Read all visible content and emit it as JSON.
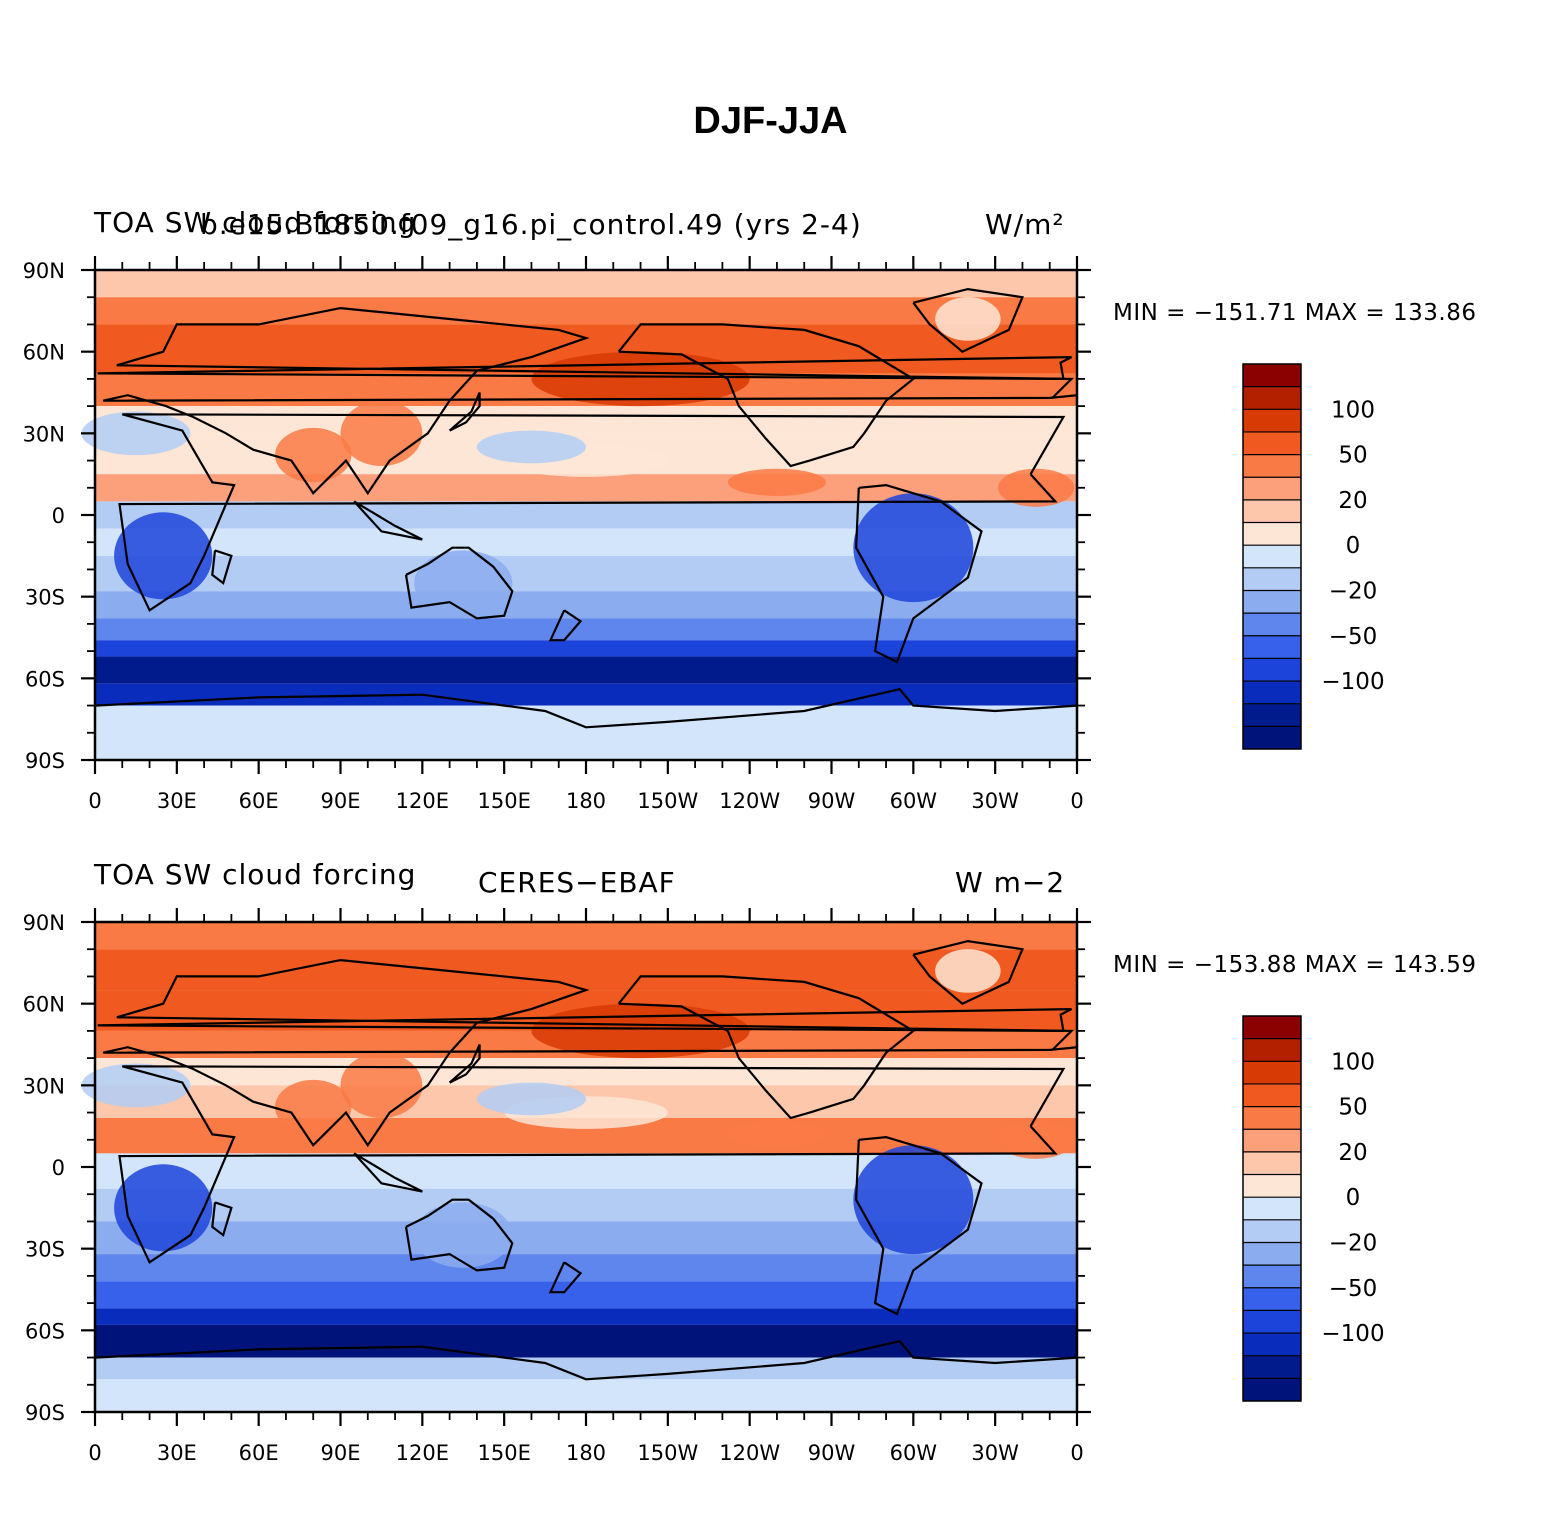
{
  "figure": {
    "title": "DJF-JJA"
  },
  "panels": [
    {
      "left_title": "TOA SW cloud forcing",
      "center_title": "b.e15.B1850.f09_g16.pi_control.49 (yrs 2-4)",
      "right_title": "W/m²",
      "min_max": "MIN = −151.71  MAX = 133.86"
    },
    {
      "left_title": "TOA SW cloud forcing",
      "center_title": "CERES−EBAF",
      "right_title": "W m−2",
      "min_max": "MIN = −153.88  MAX = 143.59"
    }
  ],
  "axes": {
    "lon_ticks": [
      "0",
      "30E",
      "60E",
      "90E",
      "120E",
      "150E",
      "180",
      "150W",
      "120W",
      "90W",
      "60W",
      "30W",
      "0"
    ],
    "lat_ticks": [
      "90N",
      "60N",
      "30N",
      "0",
      "30S",
      "60S",
      "90S"
    ]
  },
  "colorbar": {
    "labels": [
      "100",
      "50",
      "20",
      "0",
      "−20",
      "−50",
      "−100"
    ],
    "colors": [
      "#8b0000",
      "#b22000",
      "#d83a05",
      "#f05a20",
      "#fa7a45",
      "#fca07c",
      "#fdc7ac",
      "#fee6d6",
      "#d2e5fa",
      "#b2ccf4",
      "#8cacf0",
      "#5f86ec",
      "#3761ea",
      "#1d44da",
      "#0a2cbc",
      "#021b8c",
      "#00137a"
    ]
  },
  "chart_data": [
    {
      "type": "heatmap",
      "title": "TOA SW cloud forcing  b.e15.B1850.f09_g16.pi_control.49 (yrs 2-4)",
      "units": "W/m²",
      "x_ticks": [
        "0",
        "30E",
        "60E",
        "90E",
        "120E",
        "150E",
        "180",
        "150W",
        "120W",
        "90W",
        "60W",
        "30W",
        "0"
      ],
      "y_ticks": [
        "90N",
        "60N",
        "30N",
        "0",
        "30S",
        "60S",
        "90S"
      ],
      "xlim": [
        0,
        360
      ],
      "ylim": [
        -90,
        90
      ],
      "min": -151.71,
      "max": 133.86,
      "colorbar_levels": [
        100,
        50,
        20,
        0,
        -20,
        -50,
        -100
      ]
    },
    {
      "type": "heatmap",
      "title": "TOA SW cloud forcing  CERES−EBAF",
      "units": "W m−2",
      "x_ticks": [
        "0",
        "30E",
        "60E",
        "90E",
        "120E",
        "150E",
        "180",
        "150W",
        "120W",
        "90W",
        "60W",
        "30W",
        "0"
      ],
      "y_ticks": [
        "90N",
        "60N",
        "30N",
        "0",
        "30S",
        "60S",
        "90S"
      ],
      "xlim": [
        0,
        360
      ],
      "ylim": [
        -90,
        90
      ],
      "min": -153.88,
      "max": 143.59,
      "colorbar_levels": [
        100,
        50,
        20,
        0,
        -20,
        -50,
        -100
      ]
    }
  ]
}
